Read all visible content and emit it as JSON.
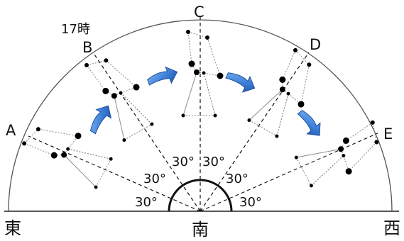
{
  "figure": {
    "time_label": "17時",
    "points": [
      "A",
      "B",
      "C",
      "D",
      "E"
    ],
    "directions": {
      "east": "東",
      "south": "南",
      "west": "西"
    },
    "angle_labels": [
      "30°",
      "30°",
      "30°",
      "30°",
      "30°",
      "30°"
    ],
    "angle_step_degrees": 30,
    "motion": "east-to-west",
    "colors": {
      "arrow": "#3d7fd9",
      "arrow_dark": "#1d4fa0",
      "line": "#222222",
      "constellation": "#777777"
    }
  }
}
